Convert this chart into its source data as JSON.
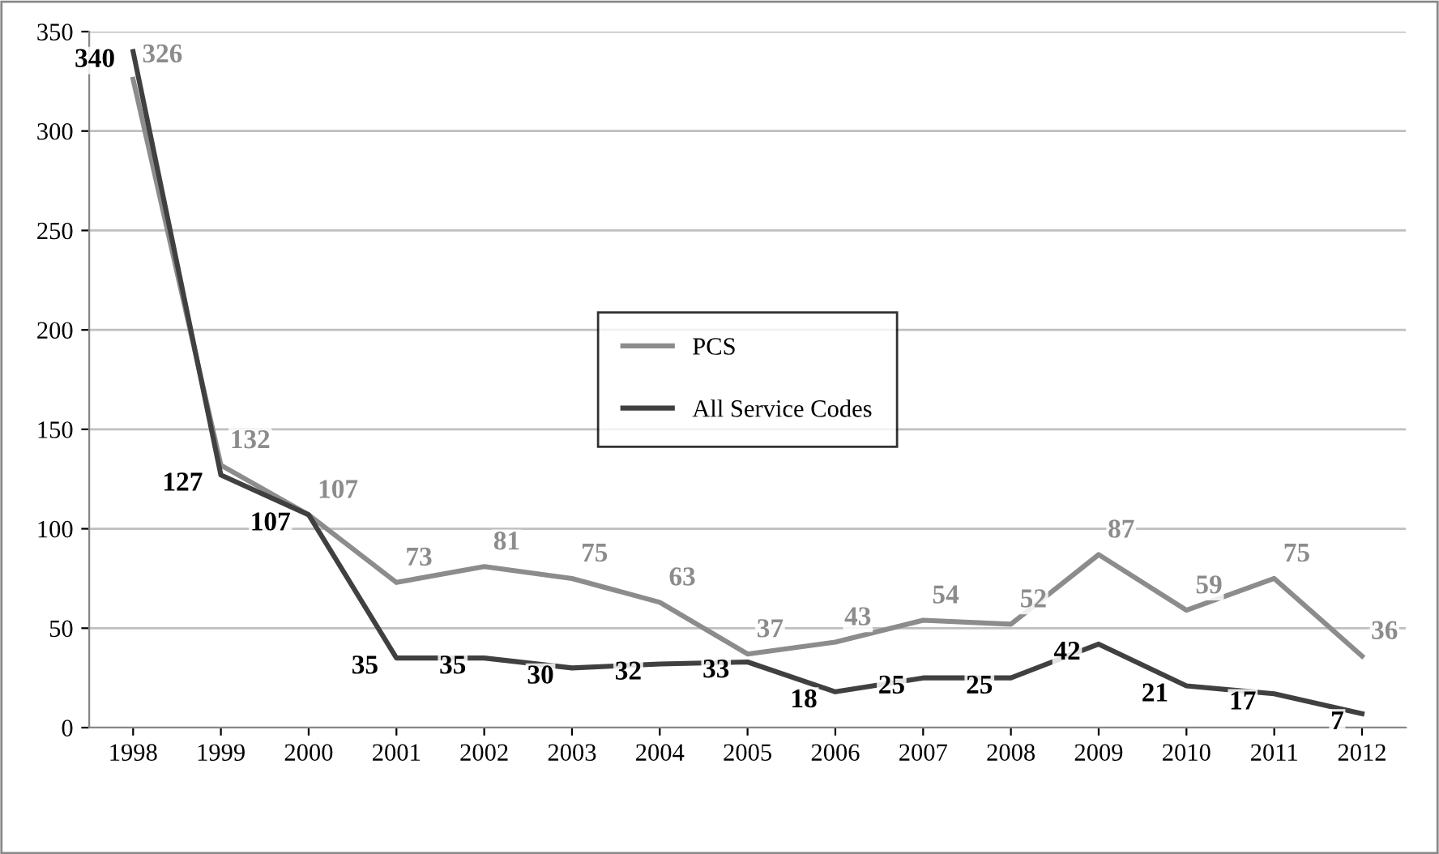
{
  "chart_data": {
    "type": "line",
    "categories": [
      "1998",
      "1999",
      "2000",
      "2001",
      "2002",
      "2003",
      "2004",
      "2005",
      "2006",
      "2007",
      "2008",
      "2009",
      "2010",
      "2011",
      "2012"
    ],
    "series": [
      {
        "name": "PCS",
        "color": "#8c8c8c",
        "values": [
          326,
          132,
          107,
          73,
          81,
          75,
          63,
          37,
          43,
          54,
          52,
          87,
          59,
          75,
          36
        ]
      },
      {
        "name": "All Service Codes",
        "color": "#404040",
        "values": [
          340,
          127,
          107,
          35,
          35,
          30,
          32,
          33,
          18,
          25,
          25,
          42,
          21,
          17,
          7
        ]
      }
    ],
    "ylim": [
      0,
      350
    ],
    "yticks": [
      0,
      50,
      100,
      150,
      200,
      250,
      300,
      350
    ],
    "grid": "y",
    "legend": "center",
    "marker": "none",
    "line_style": "solid",
    "data_labels": true
  }
}
